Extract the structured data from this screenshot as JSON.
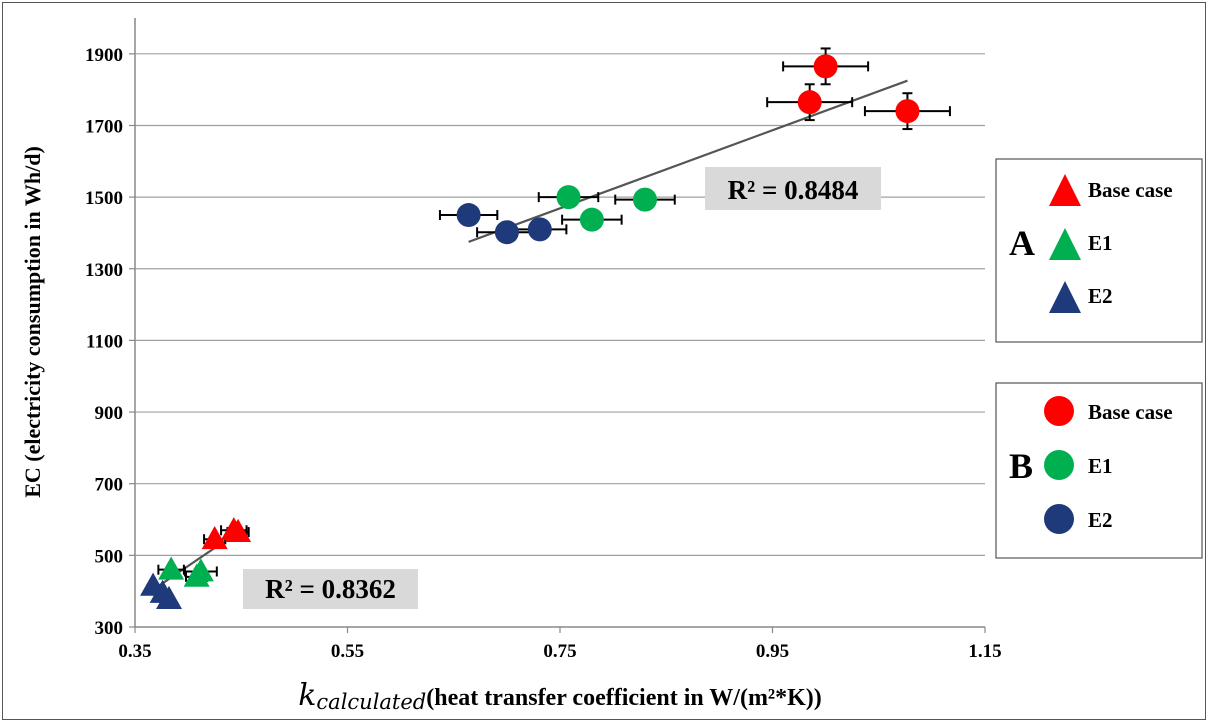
{
  "chart_data": {
    "type": "scatter",
    "title": "",
    "ylabel": "EC (electricity consumption in Wh/d)",
    "xlabel_symbol": "k",
    "xlabel_subscript": "calculated",
    "xlabel_text": "(heat transfer coefficient in W/(m²*K))",
    "xlim": [
      0.35,
      1.15
    ],
    "ylim": [
      300,
      2000
    ],
    "x_ticks": [
      "0.35",
      "0.55",
      "0.75",
      "0.95",
      "1.15"
    ],
    "y_ticks": [
      "300",
      "500",
      "700",
      "900",
      "1100",
      "1300",
      "1500",
      "1700",
      "1900"
    ],
    "grid": "horizontal",
    "colors": {
      "base_case": "#ff0000",
      "e1": "#00b050",
      "e2": "#1f3a7a",
      "trendline": "#555555"
    },
    "groups": [
      {
        "name": "A",
        "marker": "triangle",
        "series": [
          {
            "name": "Base case",
            "color_key": "base_case",
            "points": [
              {
                "x": 0.425,
                "y": 545,
                "xerr": 0.01,
                "yerr": 0
              },
              {
                "x": 0.443,
                "y": 570,
                "xerr": 0.012,
                "yerr": 0
              },
              {
                "x": 0.447,
                "y": 565,
                "xerr": 0.01,
                "yerr": 0
              }
            ]
          },
          {
            "name": "E1",
            "color_key": "e1",
            "points": [
              {
                "x": 0.384,
                "y": 460,
                "xerr": 0.012,
                "yerr": 0
              },
              {
                "x": 0.412,
                "y": 455,
                "xerr": 0.015,
                "yerr": 0
              },
              {
                "x": 0.408,
                "y": 440,
                "xerr": 0.01,
                "yerr": 0
              }
            ]
          },
          {
            "name": "E2",
            "color_key": "e2",
            "points": [
              {
                "x": 0.367,
                "y": 415,
                "xerr": 0,
                "yerr": 0
              },
              {
                "x": 0.376,
                "y": 395,
                "xerr": 0,
                "yerr": 0
              },
              {
                "x": 0.382,
                "y": 378,
                "xerr": 0,
                "yerr": 0
              }
            ]
          }
        ],
        "trendline": {
          "x": [
            0.365,
            0.452
          ],
          "y": [
            400,
            575
          ]
        },
        "r_squared": "R² = 0.8362"
      },
      {
        "name": "B",
        "marker": "circle",
        "series": [
          {
            "name": "Base case",
            "color_key": "base_case",
            "points": [
              {
                "x": 1.0,
                "y": 1865,
                "xerr": 0.04,
                "yerr": 50
              },
              {
                "x": 0.985,
                "y": 1765,
                "xerr": 0.04,
                "yerr": 50
              },
              {
                "x": 1.077,
                "y": 1740,
                "xerr": 0.04,
                "yerr": 50
              }
            ]
          },
          {
            "name": "E1",
            "color_key": "e1",
            "points": [
              {
                "x": 0.758,
                "y": 1500,
                "xerr": 0.028,
                "yerr": 0
              },
              {
                "x": 0.78,
                "y": 1437,
                "xerr": 0.028,
                "yerr": 0
              },
              {
                "x": 0.83,
                "y": 1493,
                "xerr": 0.028,
                "yerr": 0
              }
            ]
          },
          {
            "name": "E2",
            "color_key": "e2",
            "points": [
              {
                "x": 0.664,
                "y": 1450,
                "xerr": 0.027,
                "yerr": 0
              },
              {
                "x": 0.7,
                "y": 1402,
                "xerr": 0.028,
                "yerr": 0
              },
              {
                "x": 0.731,
                "y": 1410,
                "xerr": 0.025,
                "yerr": 0
              }
            ]
          }
        ],
        "trendline": {
          "x": [
            0.664,
            1.077
          ],
          "y": [
            1375,
            1825
          ]
        },
        "r_squared": "R² = 0.8484"
      }
    ],
    "legend_placement": "right"
  }
}
